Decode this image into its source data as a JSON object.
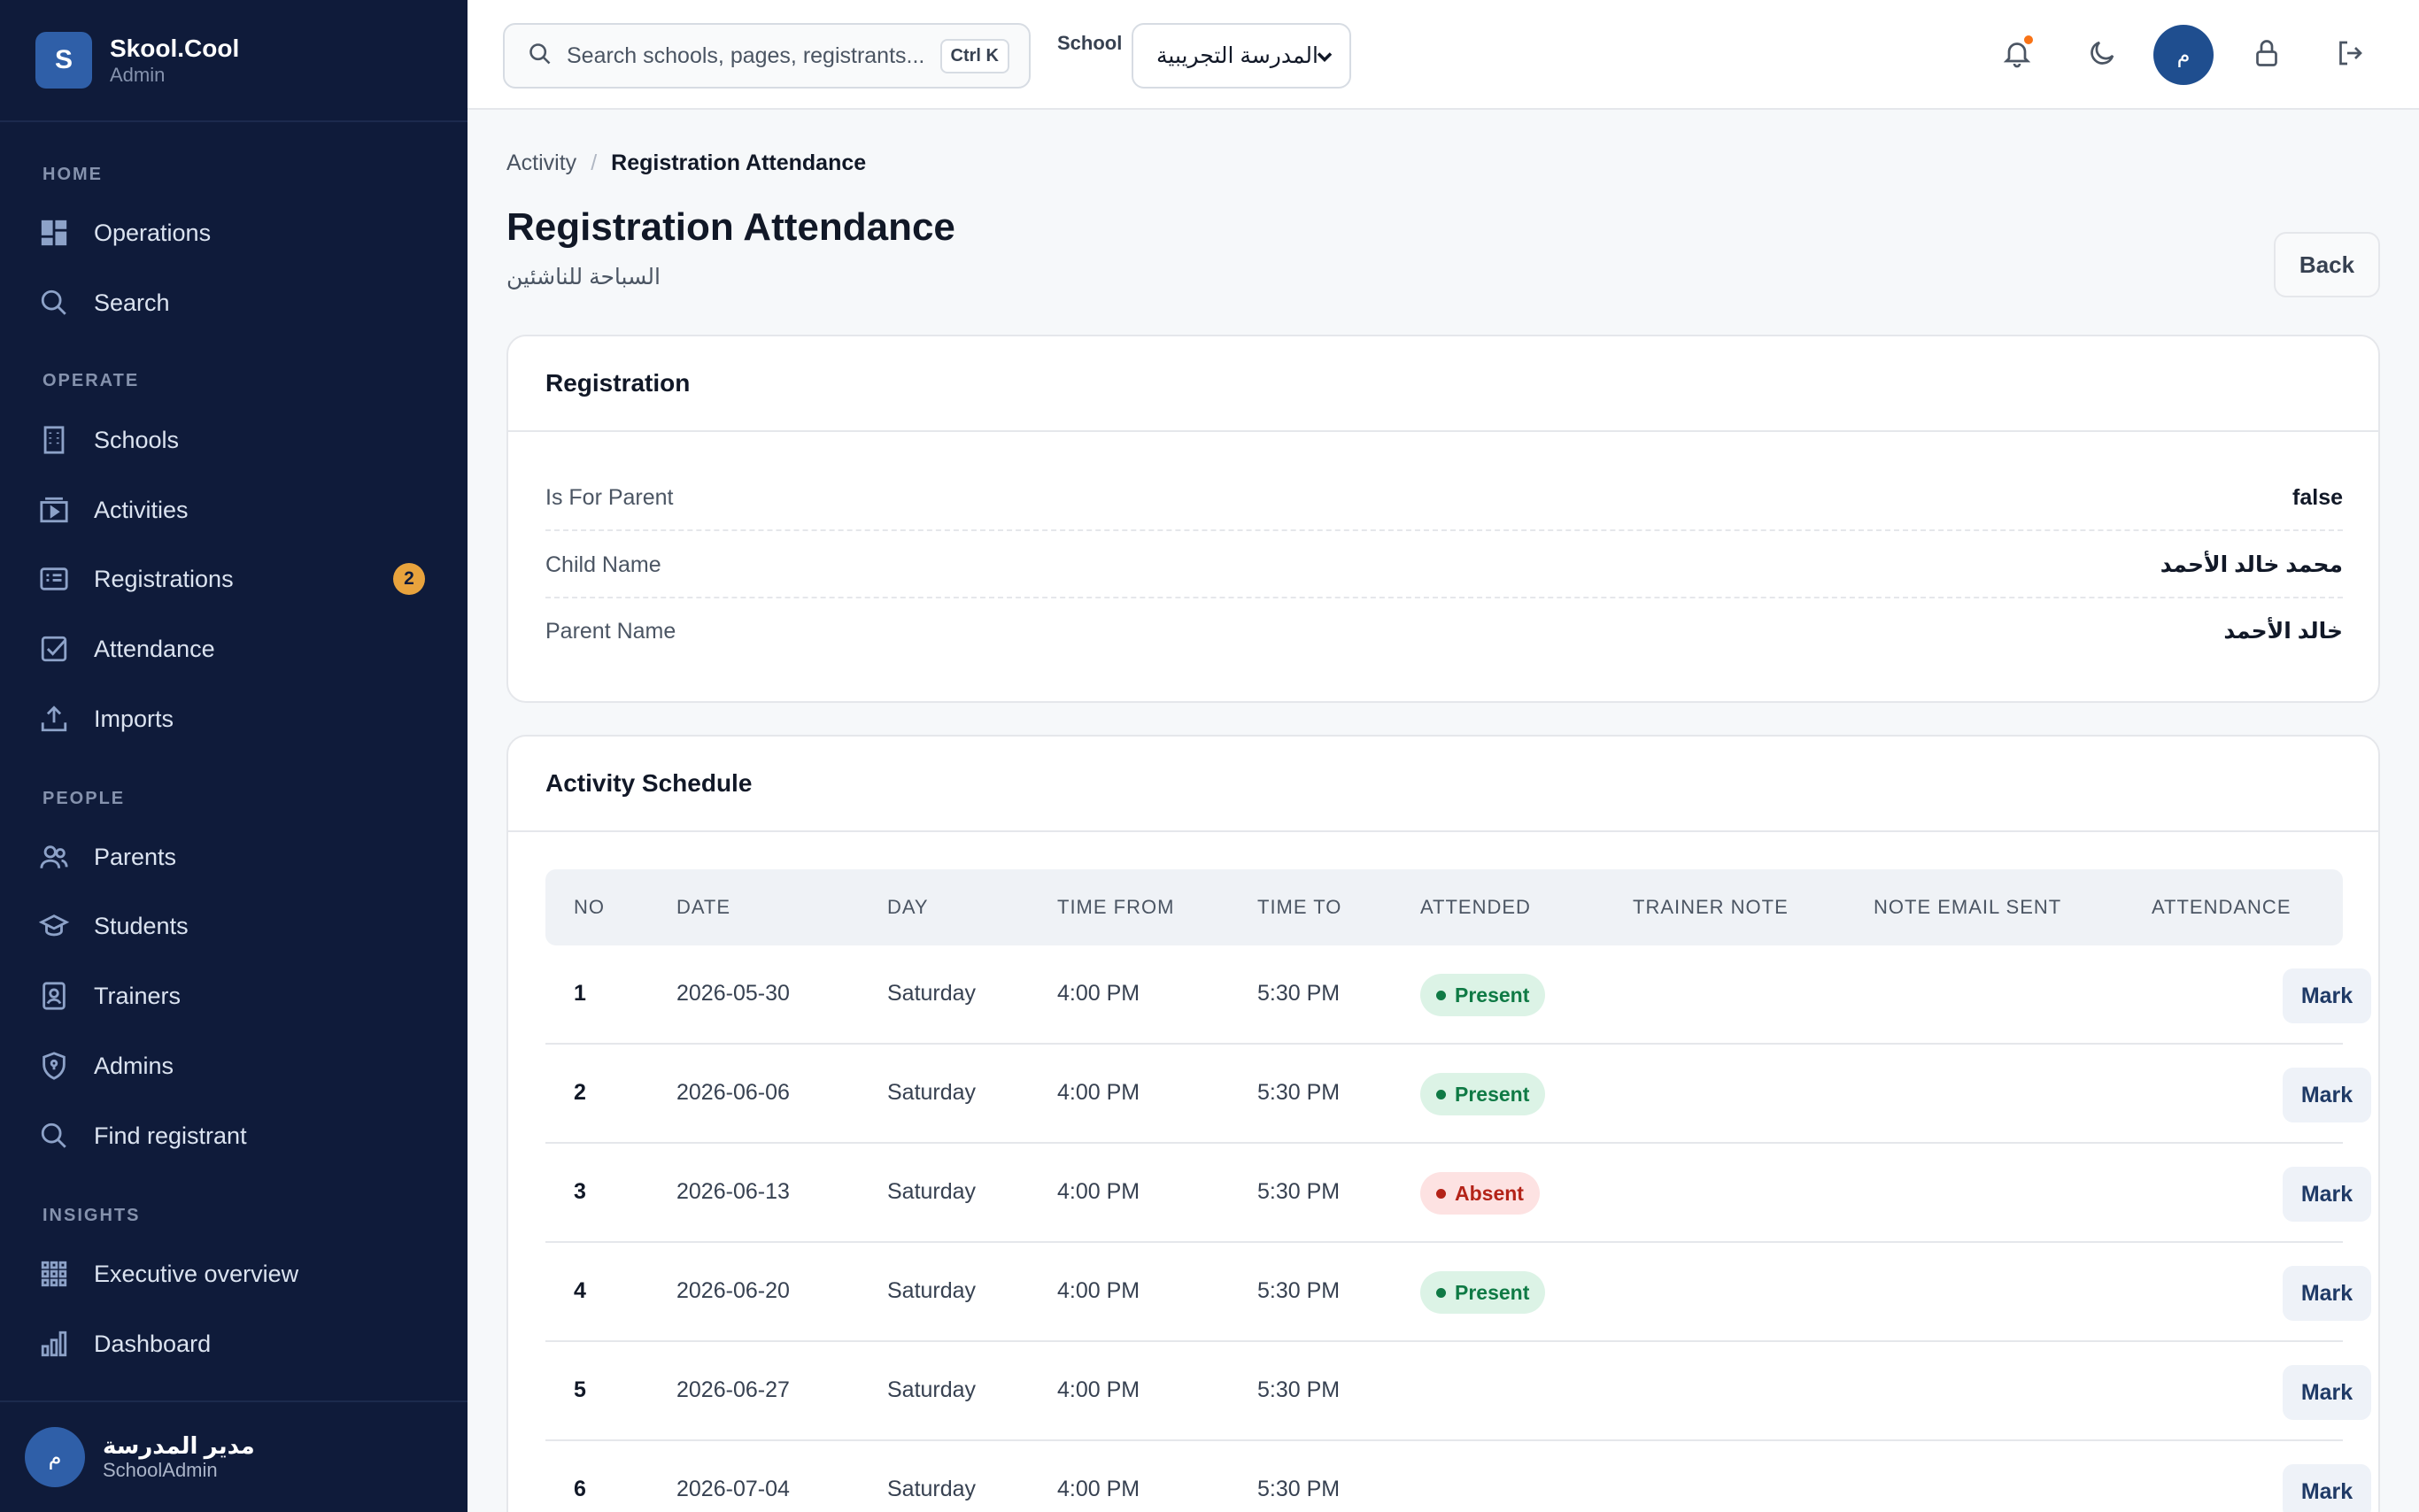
{
  "brand": {
    "logo_letter": "S",
    "name": "Skool.Cool",
    "role": "Admin"
  },
  "sidebar": {
    "sections": {
      "home": "HOME",
      "operate": "OPERATE",
      "people": "PEOPLE",
      "insights": "INSIGHTS"
    },
    "items": {
      "operations": "Operations",
      "search": "Search",
      "schools": "Schools",
      "activities": "Activities",
      "registrations": "Registrations",
      "registrations_badge": "2",
      "attendance": "Attendance",
      "imports": "Imports",
      "parents": "Parents",
      "students": "Students",
      "trainers": "Trainers",
      "admins": "Admins",
      "find_registrant": "Find registrant",
      "executive_overview": "Executive overview",
      "dashboard": "Dashboard"
    },
    "user": {
      "avatar": "م",
      "name": "مدير المدرسة",
      "role": "SchoolAdmin"
    }
  },
  "topbar": {
    "search_placeholder": "Search schools, pages, registrants...",
    "shortcut": "Ctrl K",
    "school_label": "School",
    "school_value": "المدرسة التجريبية",
    "avatar": "م"
  },
  "breadcrumb": {
    "parent": "Activity",
    "current": "Registration Attendance"
  },
  "page": {
    "title": "Registration Attendance",
    "subtitle": "السباحة للناشئين",
    "back_label": "Back"
  },
  "registration": {
    "title": "Registration",
    "fields": [
      {
        "label": "Is For Parent",
        "value": "false"
      },
      {
        "label": "Child Name",
        "value": "محمد خالد الأحمد"
      },
      {
        "label": "Parent Name",
        "value": "خالد الأحمد"
      }
    ]
  },
  "schedule": {
    "title": "Activity Schedule",
    "columns": [
      "NO",
      "DATE",
      "DAY",
      "TIME FROM",
      "TIME TO",
      "ATTENDED",
      "TRAINER NOTE",
      "NOTE EMAIL SENT",
      "ATTENDANCE"
    ],
    "mark_label": "Mark",
    "rows": [
      {
        "no": "1",
        "date": "2026-05-30",
        "day": "Saturday",
        "from": "4:00 PM",
        "to": "5:30 PM",
        "attended": "Present"
      },
      {
        "no": "2",
        "date": "2026-06-06",
        "day": "Saturday",
        "from": "4:00 PM",
        "to": "5:30 PM",
        "attended": "Present"
      },
      {
        "no": "3",
        "date": "2026-06-13",
        "day": "Saturday",
        "from": "4:00 PM",
        "to": "5:30 PM",
        "attended": "Absent"
      },
      {
        "no": "4",
        "date": "2026-06-20",
        "day": "Saturday",
        "from": "4:00 PM",
        "to": "5:30 PM",
        "attended": "Present"
      },
      {
        "no": "5",
        "date": "2026-06-27",
        "day": "Saturday",
        "from": "4:00 PM",
        "to": "5:30 PM",
        "attended": ""
      },
      {
        "no": "6",
        "date": "2026-07-04",
        "day": "Saturday",
        "from": "4:00 PM",
        "to": "5:30 PM",
        "attended": ""
      }
    ]
  },
  "colors": {
    "sidebar_bg": "#0f1b3a",
    "accent": "#2f5fa8",
    "badge": "#e8a33d",
    "present": "#0f7a45",
    "absent": "#b42318"
  }
}
